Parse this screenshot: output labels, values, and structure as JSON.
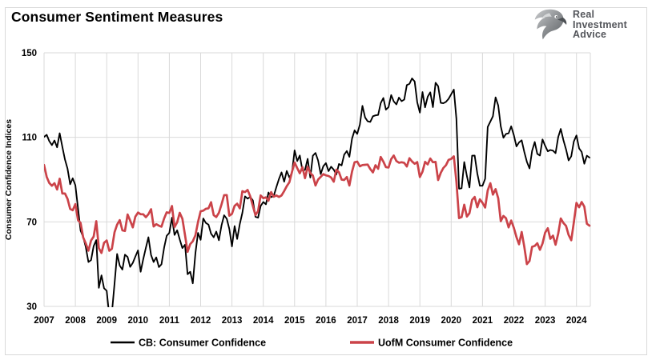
{
  "page": {
    "title": "Consumer Sentiment Measures"
  },
  "logo": {
    "name": "Real Investment Advice",
    "lines": [
      "Real",
      "Investment",
      "Advice"
    ],
    "text_color": "#54565b"
  },
  "chart_data": {
    "type": "line",
    "title": "Consumer Sentiment Measures",
    "xlabel": "",
    "ylabel": "Consumer Confidence Indices",
    "ylim": [
      30,
      150
    ],
    "yticks": [
      30,
      70,
      110,
      150
    ],
    "grid": true,
    "grid_color": "#d9d9d9",
    "legend_position": "bottom",
    "x_frequency": "monthly",
    "x_start": "2007-01",
    "x_end": "2024-06",
    "x_tick_labels": [
      "2007",
      "2008",
      "2009",
      "2010",
      "2011",
      "2012",
      "2013",
      "2014",
      "2015",
      "2016",
      "2017",
      "2018",
      "2019",
      "2020",
      "2021",
      "2022",
      "2023",
      "2024"
    ],
    "series": [
      {
        "name": "CB: Consumer Confidence",
        "color": "#000000",
        "line_width": 1.9,
        "values": [
          110.2,
          111.2,
          108.2,
          106.3,
          108.5,
          105.3,
          111.9,
          105.6,
          99.5,
          95.2,
          87.8,
          90.6,
          87.3,
          76.4,
          65.9,
          62.8,
          58.1,
          51.0,
          51.9,
          58.5,
          61.4,
          38.8,
          44.7,
          38.6,
          37.4,
          25.3,
          26.9,
          40.8,
          54.8,
          49.3,
          47.4,
          54.5,
          53.4,
          48.7,
          50.6,
          53.6,
          56.5,
          46.4,
          52.3,
          57.7,
          62.7,
          54.3,
          51.0,
          53.2,
          48.6,
          49.9,
          57.8,
          63.4,
          64.8,
          72.0,
          63.8,
          66.0,
          61.7,
          57.6,
          59.2,
          45.2,
          46.4,
          40.9,
          55.2,
          64.8,
          61.5,
          71.6,
          69.5,
          68.7,
          64.4,
          62.7,
          65.4,
          61.3,
          68.4,
          73.1,
          71.5,
          66.7,
          58.4,
          68.0,
          61.9,
          69.0,
          74.3,
          82.1,
          81.0,
          81.8,
          80.2,
          72.4,
          72.0,
          77.5,
          79.4,
          78.3,
          83.9,
          81.7,
          82.2,
          86.4,
          90.3,
          93.4,
          89.0,
          94.1,
          91.0,
          93.1,
          103.8,
          98.8,
          101.4,
          94.3,
          94.6,
          99.8,
          91.0,
          101.3,
          102.6,
          99.1,
          92.6,
          96.3,
          97.8,
          94.0,
          96.1,
          94.7,
          92.4,
          97.4,
          96.7,
          101.8,
          103.5,
          100.8,
          109.4,
          113.3,
          111.6,
          116.1,
          124.9,
          119.4,
          117.6,
          117.3,
          120.0,
          120.4,
          120.6,
          126.2,
          128.6,
          123.1,
          124.3,
          130.0,
          127.0,
          125.6,
          128.8,
          127.1,
          127.9,
          134.7,
          135.3,
          137.9,
          136.4,
          126.6,
          121.7,
          131.4,
          124.2,
          129.2,
          131.3,
          124.3,
          135.8,
          134.2,
          126.3,
          126.1,
          126.8,
          128.2,
          130.4,
          132.6,
          118.8,
          85.7,
          85.9,
          98.3,
          91.7,
          86.3,
          101.3,
          101.4,
          92.9,
          87.1,
          87.1,
          90.4,
          114.9,
          117.5,
          120.0,
          128.9,
          125.1,
          115.2,
          109.8,
          111.6,
          111.9,
          115.2,
          111.1,
          105.7,
          107.6,
          108.6,
          103.2,
          98.4,
          95.3,
          103.6,
          107.8,
          102.2,
          101.4,
          109.0,
          106.0,
          103.4,
          104.0,
          103.7,
          102.5,
          110.1,
          114.0,
          108.7,
          104.3,
          99.1,
          101.0,
          108.0,
          110.9,
          104.8,
          103.1,
          97.5,
          101.3,
          100.4
        ]
      },
      {
        "name": "UofM Consumer Confidence",
        "color": "#cb4349",
        "line_width": 2.7,
        "values": [
          96.9,
          91.3,
          88.4,
          87.1,
          88.3,
          85.3,
          90.4,
          83.4,
          83.4,
          80.9,
          76.1,
          75.5,
          78.4,
          70.8,
          69.5,
          62.6,
          59.8,
          56.4,
          61.2,
          63.0,
          70.3,
          57.6,
          55.3,
          60.1,
          61.2,
          56.3,
          57.3,
          65.1,
          68.7,
          70.8,
          66.0,
          65.7,
          73.5,
          70.6,
          67.4,
          72.5,
          74.4,
          73.6,
          73.6,
          72.2,
          73.6,
          76.0,
          67.8,
          68.9,
          68.2,
          67.7,
          71.6,
          74.5,
          74.2,
          77.5,
          67.5,
          69.8,
          74.3,
          71.5,
          63.7,
          55.8,
          59.5,
          60.8,
          63.7,
          69.9,
          75.0,
          75.3,
          76.2,
          76.4,
          79.3,
          73.2,
          72.3,
          74.3,
          78.3,
          82.6,
          82.7,
          72.9,
          73.8,
          77.6,
          78.6,
          76.4,
          84.5,
          84.1,
          85.1,
          82.1,
          77.5,
          73.2,
          75.1,
          82.5,
          81.2,
          81.6,
          80.0,
          84.1,
          81.9,
          82.5,
          81.8,
          82.5,
          84.6,
          86.9,
          88.8,
          93.6,
          98.1,
          95.4,
          93.0,
          95.9,
          90.7,
          96.1,
          93.1,
          91.9,
          87.2,
          90.0,
          91.3,
          92.6,
          92.0,
          91.7,
          91.0,
          89.0,
          94.7,
          93.5,
          90.0,
          89.8,
          91.2,
          87.2,
          93.8,
          98.2,
          98.5,
          96.3,
          96.9,
          97.0,
          97.1,
          95.0,
          93.4,
          96.8,
          95.1,
          100.7,
          98.5,
          95.9,
          95.7,
          99.7,
          101.4,
          98.8,
          98.0,
          98.2,
          97.9,
          96.2,
          100.1,
          98.6,
          97.5,
          98.3,
          91.2,
          93.8,
          98.4,
          97.2,
          100.0,
          98.2,
          98.4,
          89.8,
          93.2,
          95.5,
          96.8,
          99.3,
          99.8,
          101.0,
          89.1,
          71.8,
          72.3,
          78.1,
          72.5,
          74.1,
          80.4,
          81.8,
          76.9,
          80.7,
          79.0,
          76.8,
          84.9,
          88.3,
          82.9,
          85.5,
          81.2,
          70.3,
          72.8,
          71.7,
          67.4,
          70.6,
          67.2,
          62.8,
          59.4,
          65.2,
          58.4,
          50.0,
          51.5,
          58.2,
          58.6,
          59.9,
          56.8,
          59.7,
          64.9,
          67.0,
          62.0,
          63.5,
          59.2,
          64.4,
          71.6,
          69.5,
          68.1,
          63.8,
          61.3,
          69.7,
          79.0,
          76.9,
          79.4,
          77.2,
          69.1,
          68.2
        ]
      }
    ]
  }
}
